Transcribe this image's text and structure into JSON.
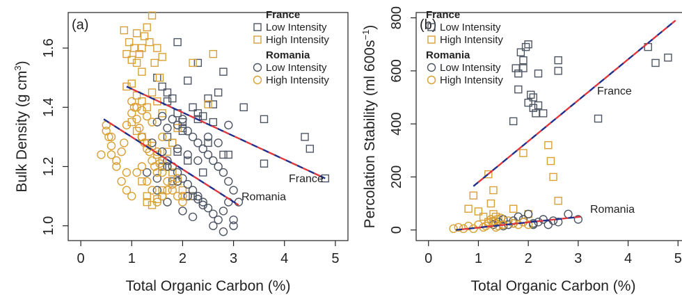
{
  "colors": {
    "gray": "#4d5462",
    "orange": "#d9a035",
    "fit_blue": "#1f2f8a",
    "fit_red": "#e0353a",
    "fit_yellow": "#e8c53a",
    "axis": "#222222"
  },
  "chart_data": [
    {
      "type": "scatter",
      "panel_label": "(a)",
      "xlabel": "Total Organic Carbon (%)",
      "ylabel_main": "Bulk Density (g cm",
      "ylabel_sup": "3",
      "ylabel_end": ")",
      "xlim": [
        0,
        5
      ],
      "ylim": [
        0.95,
        1.72
      ],
      "xticks": [
        0,
        1,
        2,
        3,
        4,
        5
      ],
      "yticks": [
        1.0,
        1.2,
        1.4,
        1.6
      ],
      "ytick_labels": [
        "1.0",
        "1.2",
        "1.4",
        "1.6"
      ],
      "grid": false,
      "legend_position": "top-right",
      "legend": [
        {
          "group": "France",
          "items": [
            "Low Intensity",
            "High Intensity"
          ]
        },
        {
          "group": "Romania",
          "items": [
            "Low Intensity",
            "High Intensity"
          ]
        }
      ],
      "annotations": [
        "France",
        "Romania"
      ],
      "series": [
        {
          "name": "France Low Intensity",
          "marker": "square",
          "color": "gray",
          "x": [
            1.5,
            1.6,
            1.7,
            1.8,
            1.9,
            2.0,
            2.1,
            2.2,
            2.3,
            2.4,
            2.5,
            2.6,
            2.7,
            2.8,
            1.7,
            1.8,
            2.0,
            2.3,
            2.6,
            3.2,
            3.6,
            4.4,
            4.5,
            4.8,
            1.9,
            2.1,
            2.5,
            2.9,
            1.6,
            1.8,
            2.2,
            2.4,
            2.0,
            1.7,
            2.8,
            3.6,
            2.3,
            1.9
          ],
          "y": [
            1.5,
            1.47,
            1.45,
            1.43,
            1.38,
            1.35,
            1.49,
            1.4,
            1.36,
            1.37,
            1.43,
            1.41,
            1.45,
            1.52,
            1.3,
            1.28,
            1.33,
            1.38,
            1.35,
            1.4,
            1.36,
            1.3,
            1.26,
            1.16,
            1.25,
            1.22,
            1.28,
            1.24,
            1.2,
            1.15,
            1.1,
            1.18,
            1.32,
            1.42,
            1.24,
            1.21,
            1.55,
            1.62
          ]
        },
        {
          "name": "France High Intensity",
          "marker": "square",
          "color": "orange",
          "x": [
            0.85,
            0.9,
            0.95,
            1.0,
            1.05,
            1.1,
            1.15,
            1.2,
            1.25,
            1.3,
            1.35,
            1.4,
            1.45,
            1.5,
            1.55,
            1.6,
            0.9,
            1.0,
            1.1,
            1.2,
            1.3,
            1.4,
            1.5,
            1.6,
            1.0,
            1.1,
            1.2,
            1.3,
            1.4,
            1.5,
            1.6,
            1.7,
            1.8,
            1.9,
            2.0,
            2.1,
            2.2,
            2.6,
            1.3,
            1.4,
            1.5,
            1.6,
            1.2,
            1.3,
            1.7,
            1.8,
            1.9,
            2.5,
            1.1,
            1.2
          ],
          "y": [
            1.66,
            1.58,
            1.62,
            1.56,
            1.6,
            1.65,
            1.58,
            1.6,
            1.64,
            1.67,
            1.62,
            1.71,
            1.55,
            1.6,
            1.5,
            1.57,
            1.47,
            1.48,
            1.44,
            1.42,
            1.4,
            1.45,
            1.42,
            1.38,
            1.35,
            1.32,
            1.3,
            1.28,
            1.27,
            1.24,
            1.22,
            1.2,
            1.18,
            1.15,
            1.12,
            1.1,
            1.55,
            1.58,
            1.1,
            1.07,
            1.09,
            1.12,
            1.15,
            1.08,
            1.25,
            1.28,
            1.33,
            1.41,
            1.55,
            1.52
          ]
        },
        {
          "name": "Romania Low Intensity",
          "marker": "circle",
          "color": "gray",
          "x": [
            1.2,
            1.4,
            1.5,
            1.6,
            1.7,
            1.8,
            1.9,
            2.0,
            2.1,
            2.2,
            2.3,
            2.4,
            2.5,
            2.6,
            2.7,
            2.8,
            2.9,
            3.0,
            3.1,
            1.6,
            1.7,
            1.8,
            1.9,
            2.0,
            2.1,
            2.2,
            2.3,
            2.4,
            2.5,
            2.6,
            2.7,
            2.8,
            2.9,
            3.0,
            1.5,
            1.6,
            1.7,
            1.8,
            2.0,
            2.2,
            2.4,
            2.6,
            2.8,
            3.0,
            1.9,
            2.1,
            2.3,
            2.5,
            2.7,
            2.9,
            1.3,
            1.5,
            1.7,
            1.9,
            2.1,
            2.3
          ],
          "y": [
            1.3,
            1.28,
            1.35,
            1.37,
            1.33,
            1.36,
            1.34,
            1.36,
            1.32,
            1.3,
            1.28,
            1.26,
            1.24,
            1.22,
            1.2,
            1.18,
            1.15,
            1.12,
            1.08,
            1.25,
            1.22,
            1.2,
            1.18,
            1.16,
            1.14,
            1.12,
            1.1,
            1.08,
            1.06,
            1.04,
            1.02,
            1.05,
            1.08,
            1.0,
            1.12,
            1.1,
            1.08,
            1.14,
            1.05,
            1.03,
            1.07,
            1.0,
            0.98,
            1.02,
            1.26,
            1.24,
            1.22,
            1.3,
            1.28,
            1.34,
            1.18,
            1.16,
            1.2,
            1.15,
            1.1,
            1.09
          ]
        },
        {
          "name": "Romania High Intensity",
          "marker": "circle",
          "color": "orange",
          "x": [
            0.4,
            0.5,
            0.55,
            0.6,
            0.7,
            0.8,
            0.85,
            0.9,
            1.0,
            1.05,
            1.1,
            1.15,
            1.2,
            1.25,
            1.3,
            1.35,
            1.4,
            1.45,
            1.5,
            1.55,
            1.6,
            1.7,
            1.8,
            1.9,
            2.0,
            0.6,
            0.7,
            0.8,
            0.9,
            1.0,
            1.1,
            1.2,
            1.3,
            1.4,
            1.5,
            1.6,
            1.7,
            1.8,
            1.9,
            2.0,
            1.0,
            1.1,
            1.2,
            1.3,
            1.4,
            1.5,
            1.6,
            0.5,
            0.6,
            0.9
          ],
          "y": [
            1.24,
            1.32,
            1.3,
            1.27,
            1.22,
            1.25,
            1.28,
            1.34,
            1.38,
            1.4,
            1.36,
            1.33,
            1.3,
            1.28,
            1.26,
            1.25,
            1.22,
            1.2,
            1.18,
            1.21,
            1.18,
            1.15,
            1.12,
            1.1,
            1.08,
            1.24,
            1.2,
            1.15,
            1.12,
            1.1,
            1.18,
            1.2,
            1.15,
            1.12,
            1.08,
            1.1,
            1.12,
            1.14,
            1.16,
            1.1,
            1.42,
            1.4,
            1.39,
            1.37,
            1.35,
            1.25,
            1.3,
            1.34,
            1.3,
            1.18
          ]
        }
      ],
      "fit_lines": [
        {
          "name": "France",
          "x": [
            0.9,
            4.8
          ],
          "y": [
            1.47,
            1.16
          ]
        },
        {
          "name": "Romania",
          "x": [
            0.45,
            3.1
          ],
          "y": [
            1.36,
            1.07
          ]
        }
      ]
    },
    {
      "type": "scatter",
      "panel_label": "(b)",
      "xlabel": "Total Organic Carbon (%)",
      "ylabel_main": "Percolation Stability (ml 600s",
      "ylabel_sup": "−1",
      "ylabel_end": ")",
      "xlim": [
        0,
        5
      ],
      "ylim": [
        -40,
        820
      ],
      "xticks": [
        0,
        1,
        2,
        3,
        4,
        5
      ],
      "yticks": [
        0,
        200,
        400,
        600,
        800
      ],
      "ytick_labels": [
        "0",
        "200",
        "400",
        "600",
        "800"
      ],
      "grid": false,
      "legend_position": "top-left",
      "legend": [
        {
          "group": "France",
          "items": [
            "Low Intensity",
            "High Intensity"
          ]
        },
        {
          "group": "Romania",
          "items": [
            "Low Intensity",
            "High Intensity"
          ]
        }
      ],
      "annotations": [
        "France",
        "Romania"
      ],
      "series": [
        {
          "name": "France Low Intensity",
          "marker": "square",
          "color": "gray",
          "x": [
            1.7,
            1.8,
            1.85,
            1.9,
            1.95,
            2.0,
            2.05,
            2.1,
            2.15,
            2.2,
            2.3,
            2.6,
            2.6,
            1.8,
            1.9,
            2.0,
            2.1,
            2.2,
            1.75,
            3.4,
            4.4,
            4.55,
            4.8
          ],
          "y": [
            410,
            590,
            670,
            640,
            690,
            700,
            510,
            460,
            440,
            590,
            440,
            600,
            640,
            530,
            610,
            480,
            500,
            470,
            610,
            420,
            690,
            630,
            650
          ]
        },
        {
          "name": "France High Intensity",
          "marker": "square",
          "color": "orange",
          "x": [
            1.2,
            1.25,
            1.3,
            0.9,
            0.8,
            1.0,
            1.1,
            1.2,
            1.4,
            1.5,
            1.7,
            1.9,
            2.0,
            2.4,
            2.45,
            2.5,
            2.6,
            1.3,
            1.35,
            1.4
          ],
          "y": [
            210,
            100,
            150,
            130,
            80,
            70,
            50,
            30,
            40,
            20,
            80,
            290,
            60,
            320,
            260,
            200,
            110,
            60,
            50,
            40
          ]
        },
        {
          "name": "Romania Low Intensity",
          "marker": "circle",
          "color": "gray",
          "x": [
            1.4,
            1.5,
            1.6,
            1.7,
            1.8,
            1.9,
            2.0,
            2.1,
            2.2,
            2.4,
            2.5,
            2.8,
            3.0,
            1.3,
            1.5,
            1.7,
            1.9,
            2.1,
            2.3,
            2.6
          ],
          "y": [
            30,
            40,
            20,
            35,
            50,
            40,
            60,
            25,
            30,
            20,
            35,
            60,
            40,
            20,
            15,
            25,
            30,
            20,
            40,
            30
          ]
        },
        {
          "name": "Romania High Intensity",
          "marker": "circle",
          "color": "orange",
          "x": [
            0.5,
            0.6,
            0.8,
            0.9,
            1.0,
            1.1,
            1.2,
            1.3,
            1.4,
            1.5,
            1.6,
            1.7,
            1.8,
            1.9,
            2.0,
            1.25,
            1.35,
            1.45,
            0.7,
            1.15
          ],
          "y": [
            5,
            10,
            15,
            5,
            20,
            10,
            25,
            30,
            15,
            20,
            35,
            25,
            20,
            30,
            20,
            40,
            10,
            45,
            5,
            15
          ]
        }
      ],
      "fit_lines": [
        {
          "name": "France",
          "x": [
            0.9,
            4.95
          ],
          "y": [
            165,
            790
          ]
        },
        {
          "name": "Romania",
          "x": [
            0.55,
            3.05
          ],
          "y": [
            0,
            50
          ]
        }
      ]
    }
  ]
}
